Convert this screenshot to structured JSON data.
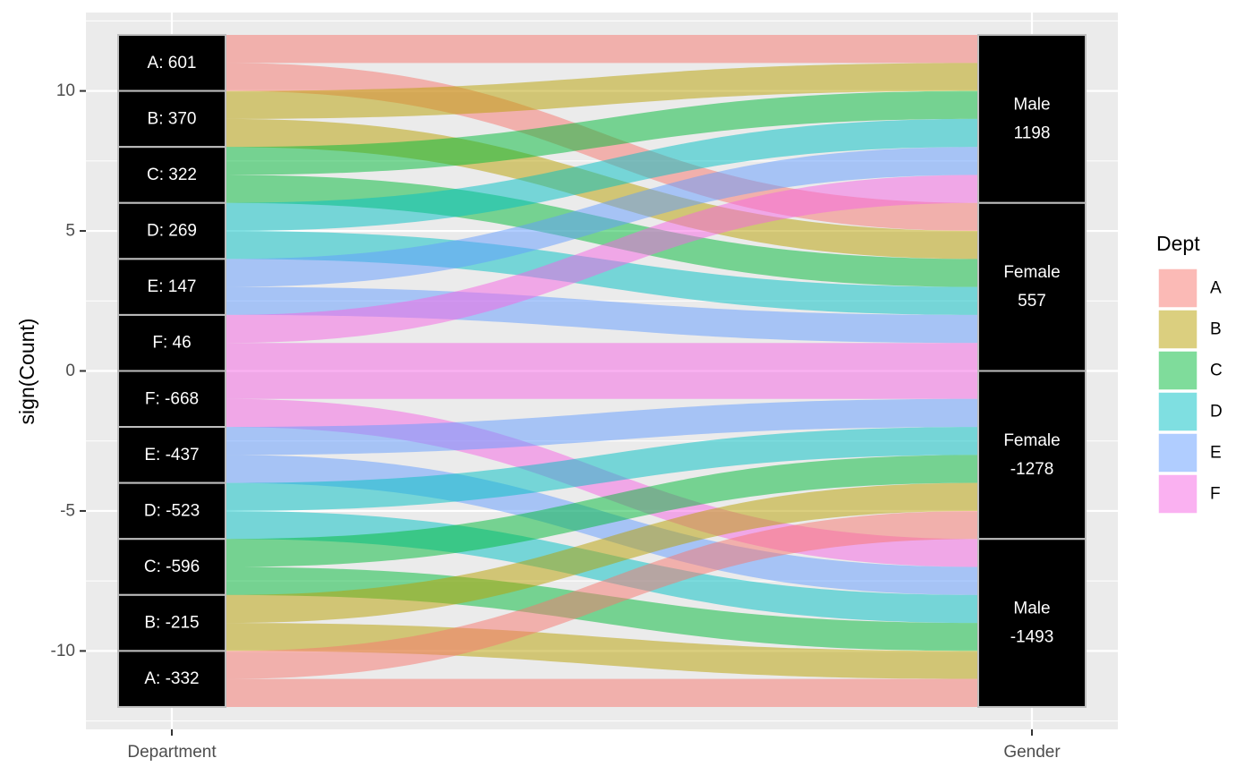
{
  "chart_data": {
    "type": "alluvial",
    "ylabel": "sign(Count)",
    "axes": [
      "Department",
      "Gender"
    ],
    "ylim": [
      -12.8,
      12.8
    ],
    "y_ticks": [
      10,
      5,
      0,
      -5,
      -10
    ],
    "y_tick_labels": [
      "10",
      "5",
      "0",
      "-5",
      "-10"
    ],
    "grid": true,
    "legend": {
      "title": "Dept",
      "position": "right",
      "items": [
        {
          "label": "A",
          "color": "#F8766D"
        },
        {
          "label": "B",
          "color": "#B79F00"
        },
        {
          "label": "C",
          "color": "#00BA38"
        },
        {
          "label": "D",
          "color": "#00BFC4"
        },
        {
          "label": "E",
          "color": "#619CFF"
        },
        {
          "label": "F",
          "color": "#F564E3"
        }
      ]
    },
    "department_strata": [
      {
        "label": "A: 601",
        "bottom": 10,
        "top": 12
      },
      {
        "label": "B: 370",
        "bottom": 8,
        "top": 10
      },
      {
        "label": "C: 322",
        "bottom": 6,
        "top": 8
      },
      {
        "label": "D: 269",
        "bottom": 4,
        "top": 6
      },
      {
        "label": "E: 147",
        "bottom": 2,
        "top": 4
      },
      {
        "label": "F: 46",
        "bottom": 0,
        "top": 2
      },
      {
        "label": "F: -668",
        "bottom": -2,
        "top": 0
      },
      {
        "label": "E: -437",
        "bottom": -4,
        "top": -2
      },
      {
        "label": "D: -523",
        "bottom": -6,
        "top": -4
      },
      {
        "label": "C: -596",
        "bottom": -8,
        "top": -6
      },
      {
        "label": "B: -215",
        "bottom": -10,
        "top": -8
      },
      {
        "label": "A: -332",
        "bottom": -12,
        "top": -10
      }
    ],
    "gender_strata": [
      {
        "label": [
          "Male",
          "1198"
        ],
        "bottom": 6,
        "top": 12
      },
      {
        "label": [
          "Female",
          "557"
        ],
        "bottom": 0,
        "top": 6
      },
      {
        "label": [
          "Female",
          "-1278"
        ],
        "bottom": -6,
        "top": 0
      },
      {
        "label": [
          "Male",
          "-1493"
        ],
        "bottom": -12,
        "top": -6
      }
    ],
    "flows": [
      {
        "dept": "A",
        "from": [
          11,
          12
        ],
        "to": [
          11,
          12
        ]
      },
      {
        "dept": "A",
        "from": [
          10,
          11
        ],
        "to": [
          5,
          6
        ]
      },
      {
        "dept": "B",
        "from": [
          9,
          10
        ],
        "to": [
          10,
          11
        ]
      },
      {
        "dept": "B",
        "from": [
          8,
          9
        ],
        "to": [
          4,
          5
        ]
      },
      {
        "dept": "C",
        "from": [
          7,
          8
        ],
        "to": [
          9,
          10
        ]
      },
      {
        "dept": "C",
        "from": [
          6,
          7
        ],
        "to": [
          3,
          4
        ]
      },
      {
        "dept": "D",
        "from": [
          5,
          6
        ],
        "to": [
          8,
          9
        ]
      },
      {
        "dept": "D",
        "from": [
          4,
          5
        ],
        "to": [
          2,
          3
        ]
      },
      {
        "dept": "E",
        "from": [
          3,
          4
        ],
        "to": [
          7,
          8
        ]
      },
      {
        "dept": "E",
        "from": [
          2,
          3
        ],
        "to": [
          1,
          2
        ]
      },
      {
        "dept": "F",
        "from": [
          1,
          2
        ],
        "to": [
          6,
          7
        ]
      },
      {
        "dept": "F",
        "from": [
          0,
          1
        ],
        "to": [
          0,
          1
        ]
      },
      {
        "dept": "F",
        "from": [
          -1,
          0
        ],
        "to": [
          -1,
          0
        ]
      },
      {
        "dept": "F",
        "from": [
          -2,
          -1
        ],
        "to": [
          -7,
          -6
        ]
      },
      {
        "dept": "E",
        "from": [
          -3,
          -2
        ],
        "to": [
          -2,
          -1
        ]
      },
      {
        "dept": "E",
        "from": [
          -4,
          -3
        ],
        "to": [
          -8,
          -7
        ]
      },
      {
        "dept": "D",
        "from": [
          -5,
          -4
        ],
        "to": [
          -3,
          -2
        ]
      },
      {
        "dept": "D",
        "from": [
          -6,
          -5
        ],
        "to": [
          -9,
          -8
        ]
      },
      {
        "dept": "C",
        "from": [
          -7,
          -6
        ],
        "to": [
          -4,
          -3
        ]
      },
      {
        "dept": "C",
        "from": [
          -8,
          -7
        ],
        "to": [
          -10,
          -9
        ]
      },
      {
        "dept": "B",
        "from": [
          -9,
          -8
        ],
        "to": [
          -5,
          -4
        ]
      },
      {
        "dept": "B",
        "from": [
          -10,
          -9
        ],
        "to": [
          -11,
          -10
        ]
      },
      {
        "dept": "A",
        "from": [
          -11,
          -10
        ],
        "to": [
          -6,
          -5
        ]
      },
      {
        "dept": "A",
        "from": [
          -12,
          -11
        ],
        "to": [
          -12,
          -11
        ]
      }
    ]
  }
}
